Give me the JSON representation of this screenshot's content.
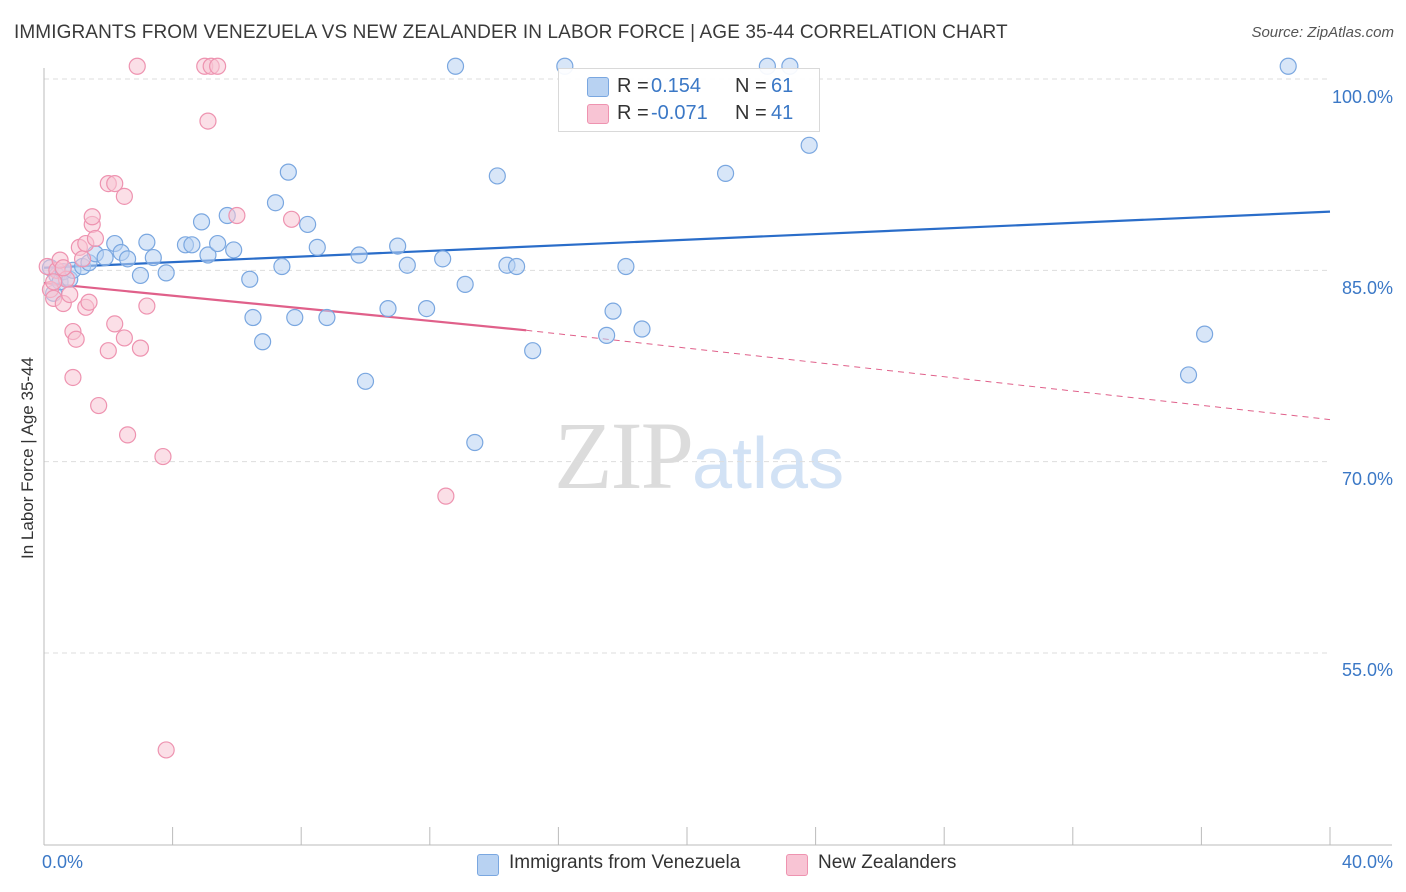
{
  "title": "IMMIGRANTS FROM VENEZUELA VS NEW ZEALANDER IN LABOR FORCE | AGE 35-44 CORRELATION CHART",
  "source": "Source: ZipAtlas.com",
  "watermark": {
    "zip": "ZIP",
    "atlas": "atlas"
  },
  "colors": {
    "blue_fill": "#b8d2f2",
    "blue_stroke": "#7aa7e0",
    "blue_line": "#2a6dc9",
    "pink_fill": "#f8c4d4",
    "pink_stroke": "#ee93b0",
    "pink_line": "#e0608a",
    "axis_text": "#3b78c6",
    "grid": "#dddddd"
  },
  "legend": {
    "rows": [
      {
        "r_label": "R =",
        "r_value": "0.154",
        "n_label": "N =",
        "n_value": "61"
      },
      {
        "r_label": "R =",
        "r_value": "-0.071",
        "n_label": "N =",
        "n_value": "41"
      }
    ]
  },
  "bottom_legend": [
    "Immigrants from Venezuela",
    "New Zealanders"
  ],
  "chart_data": {
    "type": "scatter",
    "title": "IMMIGRANTS FROM VENEZUELA VS NEW ZEALANDER IN LABOR FORCE | AGE 35-44 CORRELATION CHART",
    "xlabel": "",
    "ylabel": "In Labor Force | Age 35-44",
    "xlim": [
      0,
      40
    ],
    "ylim": [
      40,
      101
    ],
    "x_tick_labels": {
      "min": "0.0%",
      "max": "40.0%"
    },
    "y_ticks": [
      {
        "value": 100,
        "label": "100.0%"
      },
      {
        "value": 85,
        "label": "85.0%"
      },
      {
        "value": 70,
        "label": "70.0%"
      },
      {
        "value": 55,
        "label": "55.0%"
      }
    ],
    "grid": true,
    "series": [
      {
        "name": "Immigrants from Venezuela",
        "trend": {
          "x0": 0,
          "y0": 85.2,
          "x1": 40,
          "y1": 89.6
        },
        "points": [
          [
            0.2,
            85.2
          ],
          [
            0.3,
            83.2
          ],
          [
            0.4,
            84.6
          ],
          [
            0.5,
            84.1
          ],
          [
            0.6,
            84.9
          ],
          [
            0.8,
            84.3
          ],
          [
            0.9,
            85.0
          ],
          [
            1.2,
            85.3
          ],
          [
            1.4,
            85.6
          ],
          [
            1.6,
            86.3
          ],
          [
            1.9,
            86.0
          ],
          [
            2.2,
            87.1
          ],
          [
            2.4,
            86.4
          ],
          [
            2.6,
            85.9
          ],
          [
            3.0,
            84.6
          ],
          [
            3.2,
            87.2
          ],
          [
            3.4,
            86.0
          ],
          [
            3.8,
            84.8
          ],
          [
            4.4,
            87.0
          ],
          [
            4.6,
            87.0
          ],
          [
            4.9,
            88.8
          ],
          [
            5.1,
            86.2
          ],
          [
            5.4,
            87.1
          ],
          [
            5.7,
            89.3
          ],
          [
            5.9,
            86.6
          ],
          [
            6.4,
            84.3
          ],
          [
            6.5,
            81.3
          ],
          [
            6.8,
            79.4
          ],
          [
            7.2,
            90.3
          ],
          [
            7.4,
            85.3
          ],
          [
            7.6,
            92.7
          ],
          [
            7.8,
            81.3
          ],
          [
            8.2,
            88.6
          ],
          [
            8.5,
            86.8
          ],
          [
            8.8,
            81.3
          ],
          [
            9.8,
            86.2
          ],
          [
            10.0,
            76.3
          ],
          [
            10.7,
            82.0
          ],
          [
            11.0,
            86.9
          ],
          [
            11.3,
            85.4
          ],
          [
            11.9,
            82.0
          ],
          [
            12.4,
            85.9
          ],
          [
            12.8,
            101.0
          ],
          [
            13.1,
            83.9
          ],
          [
            13.4,
            71.5
          ],
          [
            14.1,
            92.4
          ],
          [
            14.4,
            85.4
          ],
          [
            14.7,
            85.3
          ],
          [
            15.2,
            78.7
          ],
          [
            16.2,
            101.0
          ],
          [
            17.5,
            79.9
          ],
          [
            17.7,
            81.8
          ],
          [
            18.1,
            85.3
          ],
          [
            18.6,
            80.4
          ],
          [
            21.2,
            92.6
          ],
          [
            23.2,
            101.0
          ],
          [
            22.5,
            101.0
          ],
          [
            23.8,
            94.8
          ],
          [
            35.6,
            76.8
          ],
          [
            36.1,
            80.0
          ],
          [
            38.7,
            101.0
          ]
        ]
      },
      {
        "name": "New Zealanders",
        "trend": {
          "x0": 0,
          "y0": 84.0,
          "x1": 15.0,
          "y1": 80.3,
          "dashed_x1": 40,
          "dashed_y1": 73.3
        },
        "points": [
          [
            0.1,
            85.3
          ],
          [
            0.2,
            83.5
          ],
          [
            0.3,
            82.8
          ],
          [
            0.4,
            85.0
          ],
          [
            0.5,
            85.8
          ],
          [
            0.6,
            82.4
          ],
          [
            0.7,
            84.3
          ],
          [
            0.8,
            83.1
          ],
          [
            0.9,
            80.2
          ],
          [
            0.9,
            76.6
          ],
          [
            1.0,
            79.6
          ],
          [
            1.1,
            86.8
          ],
          [
            1.2,
            85.9
          ],
          [
            1.3,
            87.1
          ],
          [
            1.3,
            82.1
          ],
          [
            1.4,
            82.5
          ],
          [
            1.5,
            88.6
          ],
          [
            1.5,
            89.2
          ],
          [
            1.6,
            87.5
          ],
          [
            1.7,
            74.4
          ],
          [
            2.0,
            78.7
          ],
          [
            2.0,
            91.8
          ],
          [
            2.2,
            91.8
          ],
          [
            2.2,
            80.8
          ],
          [
            2.5,
            90.8
          ],
          [
            2.5,
            79.7
          ],
          [
            2.6,
            72.1
          ],
          [
            2.9,
            101.0
          ],
          [
            3.0,
            78.9
          ],
          [
            3.2,
            82.2
          ],
          [
            3.7,
            70.4
          ],
          [
            3.8,
            47.4
          ],
          [
            5.0,
            101.0
          ],
          [
            5.1,
            96.7
          ],
          [
            5.2,
            101.0
          ],
          [
            5.4,
            101.0
          ],
          [
            6.0,
            89.3
          ],
          [
            7.7,
            89.0
          ],
          [
            12.5,
            67.3
          ],
          [
            0.3,
            84.1
          ],
          [
            0.6,
            85.2
          ]
        ]
      }
    ]
  }
}
